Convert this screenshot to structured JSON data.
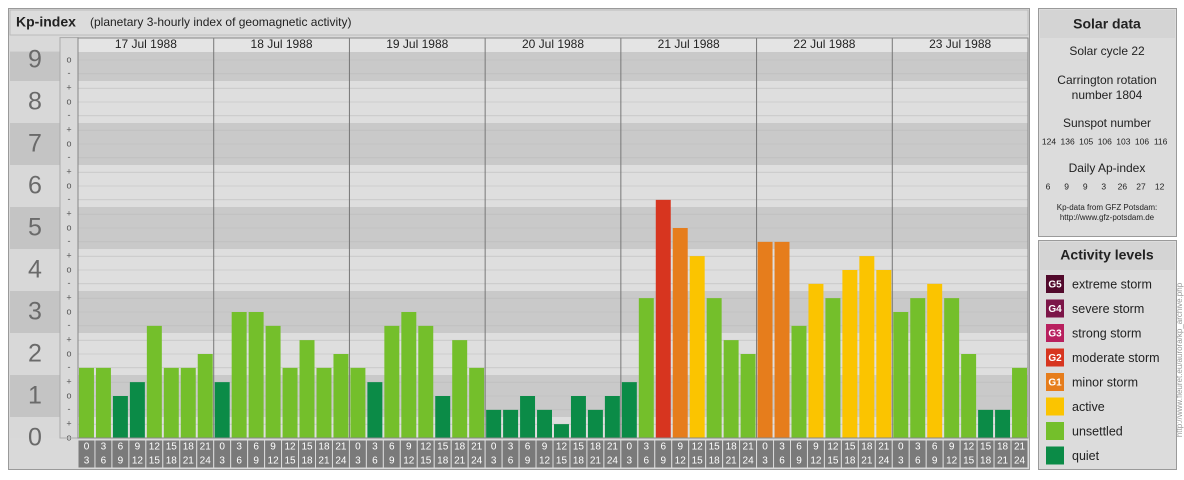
{
  "chart_data": {
    "type": "bar",
    "title": "Kp-index",
    "subtitle": "(planetary 3-hourly index of geomagnetic activity)",
    "days": [
      "17 Jul 1988",
      "18 Jul 1988",
      "19 Jul 1988",
      "20 Jul 1988",
      "21 Jul 1988",
      "22 Jul 1988",
      "23 Jul 1988"
    ],
    "hour_starts": [
      "0",
      "3",
      "6",
      "9",
      "12",
      "15",
      "18",
      "21"
    ],
    "hour_ends": [
      "3",
      "6",
      "9",
      "12",
      "15",
      "18",
      "21",
      "24"
    ],
    "values": [
      [
        1.67,
        1.67,
        1,
        1.33,
        2.67,
        1.67,
        1.67,
        2
      ],
      [
        1.33,
        3,
        3,
        2.67,
        1.67,
        2.33,
        1.67,
        2
      ],
      [
        1.67,
        1.33,
        2.67,
        3,
        2.67,
        1,
        2.33,
        1.67
      ],
      [
        0.67,
        0.67,
        1,
        0.67,
        0.33,
        1,
        0.67,
        1
      ],
      [
        1.33,
        3.33,
        5.67,
        5,
        4.33,
        3.33,
        2.33,
        2
      ],
      [
        4.67,
        4.67,
        2.67,
        3.67,
        3.33,
        4,
        4.33,
        4
      ],
      [
        3,
        3.33,
        3.67,
        3.33,
        2,
        0.67,
        0.67,
        1.67
      ]
    ],
    "colors": [
      [
        "#74bf2b",
        "#74bf2b",
        "#0b8b47",
        "#0b8b47",
        "#74bf2b",
        "#74bf2b",
        "#74bf2b",
        "#74bf2b"
      ],
      [
        "#0b8b47",
        "#74bf2b",
        "#74bf2b",
        "#74bf2b",
        "#74bf2b",
        "#74bf2b",
        "#74bf2b",
        "#74bf2b"
      ],
      [
        "#74bf2b",
        "#0b8b47",
        "#74bf2b",
        "#74bf2b",
        "#74bf2b",
        "#0b8b47",
        "#74bf2b",
        "#74bf2b"
      ],
      [
        "#0b8b47",
        "#0b8b47",
        "#0b8b47",
        "#0b8b47",
        "#0b8b47",
        "#0b8b47",
        "#0b8b47",
        "#0b8b47"
      ],
      [
        "#0b8b47",
        "#74bf2b",
        "#d7351f",
        "#e67d1c",
        "#fbc400",
        "#74bf2b",
        "#74bf2b",
        "#74bf2b"
      ],
      [
        "#e67d1c",
        "#e67d1c",
        "#74bf2b",
        "#fbc400",
        "#74bf2b",
        "#fbc400",
        "#fbc400",
        "#fbc400"
      ],
      [
        "#74bf2b",
        "#74bf2b",
        "#fbc400",
        "#74bf2b",
        "#74bf2b",
        "#0b8b47",
        "#0b8b47",
        "#74bf2b"
      ]
    ],
    "ylim": [
      0,
      9.2
    ],
    "yticks": [
      0,
      1,
      2,
      3,
      4,
      5,
      6,
      7,
      8,
      9
    ],
    "yminorticks": [
      {
        "value": 0,
        "label": "o"
      },
      {
        "value": 0.33,
        "label": "+"
      },
      {
        "value": 0.67,
        "label": "-"
      },
      {
        "value": 1,
        "label": "o"
      },
      {
        "value": 1.33,
        "label": "+"
      },
      {
        "value": 1.67,
        "label": "-"
      },
      {
        "value": 2,
        "label": "o"
      },
      {
        "value": 2.33,
        "label": "+"
      },
      {
        "value": 2.67,
        "label": "-"
      },
      {
        "value": 3,
        "label": "o"
      },
      {
        "value": 3.33,
        "label": "+"
      },
      {
        "value": 3.67,
        "label": "-"
      },
      {
        "value": 4,
        "label": "o"
      },
      {
        "value": 4.33,
        "label": "+"
      },
      {
        "value": 4.67,
        "label": "-"
      },
      {
        "value": 5,
        "label": "o"
      },
      {
        "value": 5.33,
        "label": "+"
      },
      {
        "value": 5.67,
        "label": "-"
      },
      {
        "value": 6,
        "label": "o"
      },
      {
        "value": 6.33,
        "label": "+"
      },
      {
        "value": 6.67,
        "label": "-"
      },
      {
        "value": 7,
        "label": "o"
      },
      {
        "value": 7.33,
        "label": "+"
      },
      {
        "value": 7.67,
        "label": "-"
      },
      {
        "value": 8,
        "label": "o"
      },
      {
        "value": 8.33,
        "label": "+"
      },
      {
        "value": 8.67,
        "label": "-"
      },
      {
        "value": 9,
        "label": "o"
      }
    ],
    "grid": true
  },
  "solar_data": {
    "title": "Solar data",
    "cycle": "Solar cycle 22",
    "carrington": [
      "Carrington rotation",
      "number 1804"
    ],
    "sunspot_label": "Sunspot number",
    "sunspot_numbers": [
      124,
      136,
      105,
      106,
      103,
      106,
      116
    ],
    "ap_label": "Daily Ap-index",
    "ap_values": [
      6,
      9,
      9,
      3,
      26,
      27,
      12
    ],
    "source": [
      "Kp-data from GFZ Potsdam:",
      "http://www.gfz-potsdam.de"
    ]
  },
  "activity_levels": {
    "title": "Activity levels",
    "items": [
      {
        "badge": "G5",
        "label": "extreme storm",
        "color": "#520a2c"
      },
      {
        "badge": "G4",
        "label": "severe storm",
        "color": "#7c1548"
      },
      {
        "badge": "G3",
        "label": "strong storm",
        "color": "#b8205e"
      },
      {
        "badge": "G2",
        "label": "moderate storm",
        "color": "#d7351f"
      },
      {
        "badge": "G1",
        "label": "minor storm",
        "color": "#e67d1c"
      },
      {
        "label": "active",
        "color": "#fbc400"
      },
      {
        "label": "unsettled",
        "color": "#74bf2b"
      },
      {
        "label": "quiet",
        "color": "#0b8b47"
      }
    ]
  },
  "credit": "http://www.fleuret.eu/aurora/kp_archive.php"
}
